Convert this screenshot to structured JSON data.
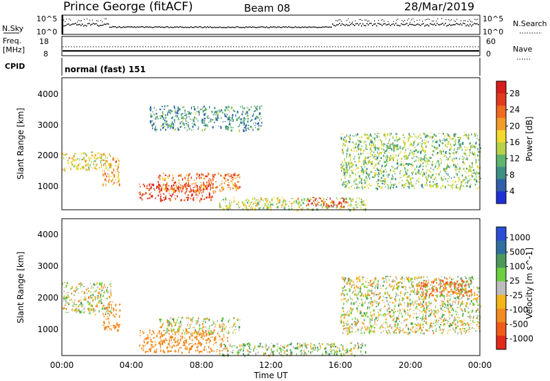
{
  "header": {
    "station": "Prince George (fitACF)",
    "beam": "Beam 08",
    "date": "28/Mar/2019"
  },
  "strips": {
    "nsky_label": "N.Sky",
    "nsky_ticks": [
      "10^5",
      "10^0"
    ],
    "nsearch_label": "N.Search",
    "nsearch_ticks": [
      "10^5",
      "10^0"
    ],
    "freq_label_1": "Freq.",
    "freq_label_2": "[MHz]",
    "freq_ticks": [
      "18",
      "8"
    ],
    "nave_label": "Nave",
    "nave_ticks": [
      "60",
      "0"
    ],
    "cpid_label": "CPID",
    "cpid_value": "normal (fast) 151"
  },
  "axes": {
    "ylabel": "Slant Range [km]",
    "yticks": [
      "4000",
      "3000",
      "2000",
      "1000"
    ],
    "xlabel": "Time UT",
    "xticks": [
      "00:00",
      "04:00",
      "08:00",
      "12:00",
      "16:00",
      "20:00",
      "00:00"
    ]
  },
  "colorbars": {
    "power": {
      "label": "Power [dB]",
      "ticks": [
        "28",
        "24",
        "20",
        "16",
        "12",
        "8",
        "4"
      ],
      "colors": [
        "#1f2fd6",
        "#2f5fa8",
        "#3f8f86",
        "#5fb46e",
        "#b7d24a",
        "#f2d92f",
        "#f29b2a",
        "#f06a1f",
        "#e23a1e",
        "#d81d1d"
      ]
    },
    "velocity": {
      "label": "Velocity [m s^-1]",
      "ticks": [
        "1000",
        "500",
        "100",
        "25",
        "-25",
        "-100",
        "-500",
        "-1000"
      ],
      "colors": [
        "#2a4fd6",
        "#2f6f9f",
        "#4d9a5b",
        "#6ecf3f",
        "#bdbdbd",
        "#f2b51c",
        "#f28c1f",
        "#f05b1a",
        "#e02a1a"
      ]
    }
  },
  "chart_data": [
    {
      "type": "heatmap",
      "panel": "power",
      "x_range": [
        "00:00",
        "24:00"
      ],
      "y_range_km": [
        180,
        4500
      ],
      "z_units": "dB",
      "regions": [
        {
          "t0": 0.0,
          "t1": 2.8,
          "r0": 1500,
          "r1": 2100,
          "mean_value": 16
        },
        {
          "t0": 2.3,
          "t1": 3.3,
          "r0": 1000,
          "r1": 1900,
          "mean_value": 20
        },
        {
          "t0": 4.4,
          "t1": 8.7,
          "r0": 500,
          "r1": 1050,
          "mean_value": 26
        },
        {
          "t0": 5.5,
          "t1": 10.2,
          "r0": 800,
          "r1": 1400,
          "mean_value": 22
        },
        {
          "t0": 9.0,
          "t1": 17.5,
          "r0": 200,
          "r1": 600,
          "mean_value": 14
        },
        {
          "t0": 14.0,
          "t1": 16.3,
          "r0": 300,
          "r1": 600,
          "mean_value": 26
        },
        {
          "t0": 16.0,
          "t1": 24.0,
          "r0": 900,
          "r1": 2700,
          "mean_value": 12
        },
        {
          "t0": 5.0,
          "t1": 11.5,
          "r0": 2800,
          "r1": 3600,
          "mean_value": 8
        }
      ]
    },
    {
      "type": "heatmap",
      "panel": "velocity",
      "x_range": [
        "00:00",
        "24:00"
      ],
      "y_range_km": [
        180,
        4500
      ],
      "z_units": "m s^-1",
      "regions": [
        {
          "t0": 0.0,
          "t1": 2.8,
          "r0": 1500,
          "r1": 2500,
          "mean_value": 0
        },
        {
          "t0": 2.3,
          "t1": 3.3,
          "r0": 1000,
          "r1": 1900,
          "mean_value": -300
        },
        {
          "t0": 4.4,
          "t1": 9.5,
          "r0": 300,
          "r1": 1000,
          "mean_value": -300
        },
        {
          "t0": 5.5,
          "t1": 10.2,
          "r0": 900,
          "r1": 1400,
          "mean_value": 0
        },
        {
          "t0": 9.0,
          "t1": 17.5,
          "r0": 200,
          "r1": 600,
          "mean_value": 60
        },
        {
          "t0": 16.0,
          "t1": 24.0,
          "r0": 900,
          "r1": 2700,
          "mean_value": 0
        },
        {
          "t0": 20.5,
          "t1": 23.5,
          "r0": 2100,
          "r1": 2600,
          "mean_value": -600
        }
      ]
    }
  ]
}
